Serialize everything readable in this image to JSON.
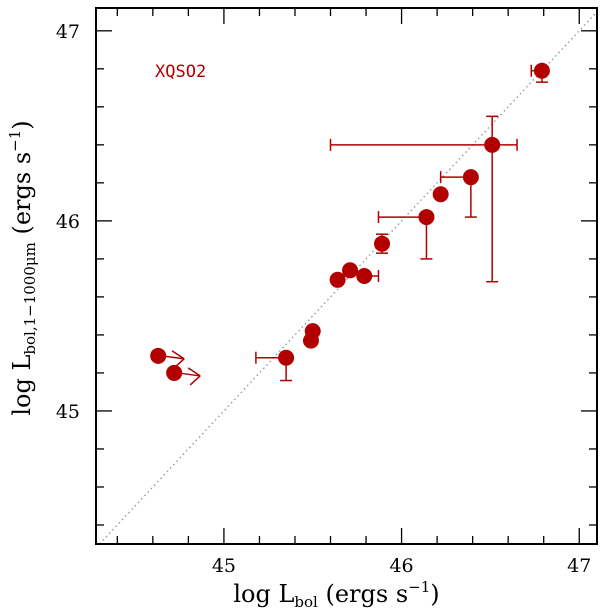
{
  "chart_data": {
    "type": "scatter",
    "title": "",
    "annotation": "XQSO2",
    "xlabel": {
      "prefix": "log L",
      "sub": "bol",
      "unit_open": " (ergs s",
      "unit_sup": "−1",
      "unit_close": ")"
    },
    "ylabel": {
      "prefix": "log L",
      "sub": "bol,1−1000μm",
      "unit_open": " (ergs s",
      "unit_sup": "−1",
      "unit_close": ")"
    },
    "xlim": [
      44.28,
      47.1
    ],
    "ylim": [
      44.3,
      47.12
    ],
    "x_ticks": [
      "45",
      "46",
      "47"
    ],
    "y_ticks": [
      "45",
      "46",
      "47"
    ],
    "one_to_one_line": true,
    "colors": {
      "points": "#b20000",
      "annotation": "#b20000",
      "reference_line": "#999999"
    },
    "points": [
      {
        "x": 44.63,
        "y": 45.29,
        "lower_limit_x": true
      },
      {
        "x": 44.72,
        "y": 45.2,
        "lower_limit_x": true
      },
      {
        "x": 45.35,
        "y": 45.28,
        "xerr_minus": 0.17,
        "yerr_minus": 0.12
      },
      {
        "x": 45.49,
        "y": 45.37
      },
      {
        "x": 45.5,
        "y": 45.42
      },
      {
        "x": 45.64,
        "y": 45.69
      },
      {
        "x": 45.71,
        "y": 45.74
      },
      {
        "x": 45.79,
        "y": 45.71,
        "xerr_plus": 0.08
      },
      {
        "x": 45.89,
        "y": 45.88,
        "yerr_minus": 0.05,
        "yerr_plus": 0.05
      },
      {
        "x": 46.14,
        "y": 46.02,
        "xerr_minus": 0.27,
        "yerr_minus": 0.22
      },
      {
        "x": 46.22,
        "y": 46.14
      },
      {
        "x": 46.39,
        "y": 46.23,
        "xerr_minus": 0.17,
        "yerr_minus": 0.21
      },
      {
        "x": 46.51,
        "y": 46.4,
        "xerr_minus": 0.91,
        "xerr_plus": 0.14,
        "yerr_minus": 0.72,
        "yerr_plus": 0.15
      },
      {
        "x": 46.79,
        "y": 46.79,
        "xerr_minus": 0.06,
        "yerr_minus": 0.06
      }
    ]
  }
}
